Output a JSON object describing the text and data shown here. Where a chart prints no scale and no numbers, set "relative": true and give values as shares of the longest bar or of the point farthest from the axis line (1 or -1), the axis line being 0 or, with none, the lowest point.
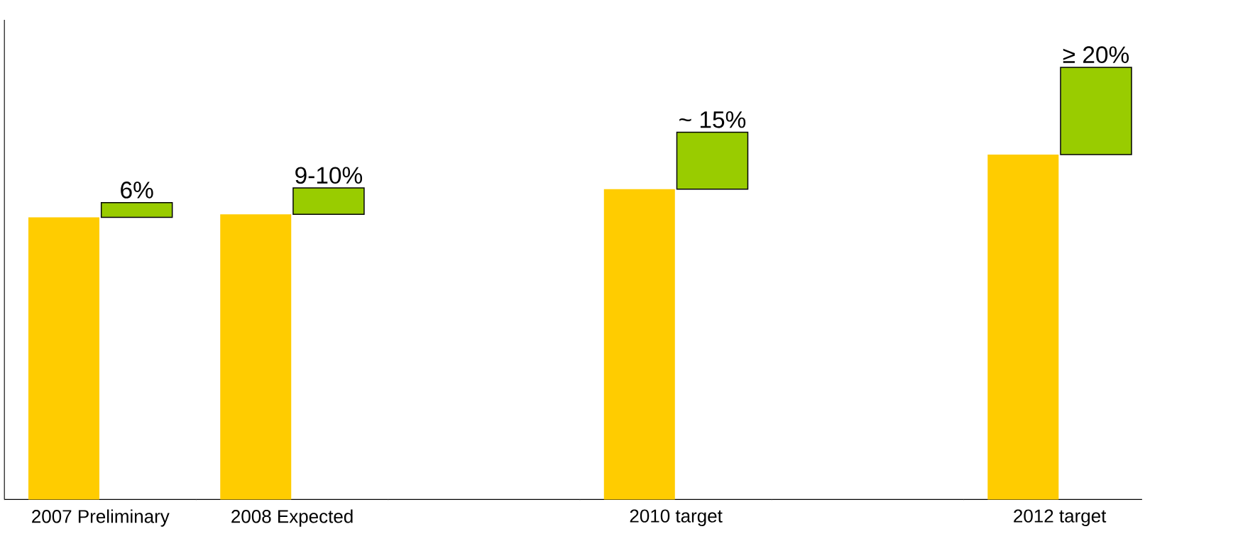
{
  "chart_data": {
    "type": "bar",
    "relative": true,
    "stacked": true,
    "categories": [
      "2007 Preliminary",
      "2008 Expected",
      null,
      "2010 target",
      null,
      "2012 target"
    ],
    "series": [
      {
        "color": "#ffcc00",
        "values": [
          0.653,
          0.66,
          null,
          0.718,
          null,
          0.798
        ]
      },
      {
        "color": "#99cc00",
        "values": [
          0.034,
          0.061,
          null,
          0.132,
          null,
          0.202
        ]
      }
    ],
    "annotations": [
      {
        "text": "6%",
        "x": "2007 Preliminary",
        "y": 0.687
      },
      {
        "text": "9-10%",
        "x": "2008 Expected",
        "y": 0.721
      },
      {
        "text": "~ 15%",
        "x": "2010 target",
        "y": 0.85
      },
      {
        "text": "≥ 20%",
        "x": "2012 target",
        "y": 1.0
      }
    ]
  }
}
